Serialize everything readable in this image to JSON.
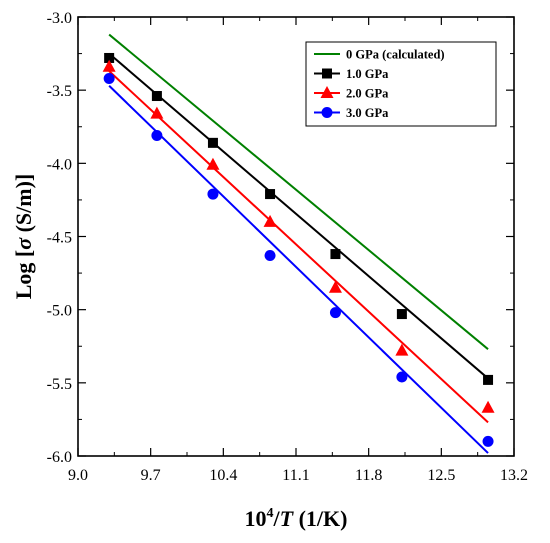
{
  "chart_data": {
    "type": "scatter",
    "xlabel": {
      "pre": "10",
      "sup": "4",
      "slash": "/",
      "var": "T",
      "unit": " (1/K)"
    },
    "ylabel": {
      "pre": "Log [",
      "sym": "σ",
      "post": " (S/m)]"
    },
    "xlim": [
      9.0,
      13.2
    ],
    "ylim": [
      -6.0,
      -3.0
    ],
    "xticks": [
      9.0,
      9.7,
      10.4,
      11.1,
      11.8,
      12.5,
      13.2
    ],
    "xtick_labels": [
      "9.0",
      "9.7",
      "10.4",
      "11.1",
      "11.8",
      "12.5",
      "13.2"
    ],
    "yticks": [
      -3.0,
      -3.5,
      -4.0,
      -4.5,
      -5.0,
      -5.5,
      -6.0
    ],
    "ytick_labels": [
      "-3.0",
      "-3.5",
      "-4.0",
      "-4.5",
      "-5.0",
      "-5.5",
      "-6.0"
    ],
    "grid": false,
    "legend_position": "top-right",
    "series": [
      {
        "name": "0 GPa (calculated)",
        "color": "#008000",
        "marker": "none",
        "line": {
          "x": [
            9.3,
            12.95
          ],
          "y": [
            -3.12,
            -5.27
          ]
        },
        "points": []
      },
      {
        "name": "1.0 GPa",
        "color": "#000000",
        "marker": "square",
        "line": {
          "x": [
            9.3,
            12.95
          ],
          "y": [
            -3.25,
            -5.47
          ]
        },
        "points": [
          {
            "x": 9.3,
            "y": -3.28
          },
          {
            "x": 9.76,
            "y": -3.54
          },
          {
            "x": 10.3,
            "y": -3.86
          },
          {
            "x": 10.85,
            "y": -4.21
          },
          {
            "x": 11.48,
            "y": -4.62
          },
          {
            "x": 12.12,
            "y": -5.03
          },
          {
            "x": 12.95,
            "y": -5.48
          }
        ]
      },
      {
        "name": "2.0 GPa",
        "color": "#ff0000",
        "marker": "triangle",
        "line": {
          "x": [
            9.3,
            12.95
          ],
          "y": [
            -3.37,
            -5.77
          ]
        },
        "points": [
          {
            "x": 9.3,
            "y": -3.34
          },
          {
            "x": 9.76,
            "y": -3.66
          },
          {
            "x": 10.3,
            "y": -4.01
          },
          {
            "x": 10.85,
            "y": -4.4
          },
          {
            "x": 11.48,
            "y": -4.85
          },
          {
            "x": 12.12,
            "y": -5.28
          },
          {
            "x": 12.95,
            "y": -5.67
          }
        ]
      },
      {
        "name": "3.0 GPa",
        "color": "#0000ff",
        "marker": "circle",
        "line": {
          "x": [
            9.3,
            12.95
          ],
          "y": [
            -3.47,
            -5.98
          ]
        },
        "points": [
          {
            "x": 9.3,
            "y": -3.42
          },
          {
            "x": 9.76,
            "y": -3.81
          },
          {
            "x": 10.3,
            "y": -4.21
          },
          {
            "x": 10.85,
            "y": -4.63
          },
          {
            "x": 11.48,
            "y": -5.02
          },
          {
            "x": 12.12,
            "y": -5.46
          },
          {
            "x": 12.95,
            "y": -5.9
          }
        ]
      }
    ]
  }
}
